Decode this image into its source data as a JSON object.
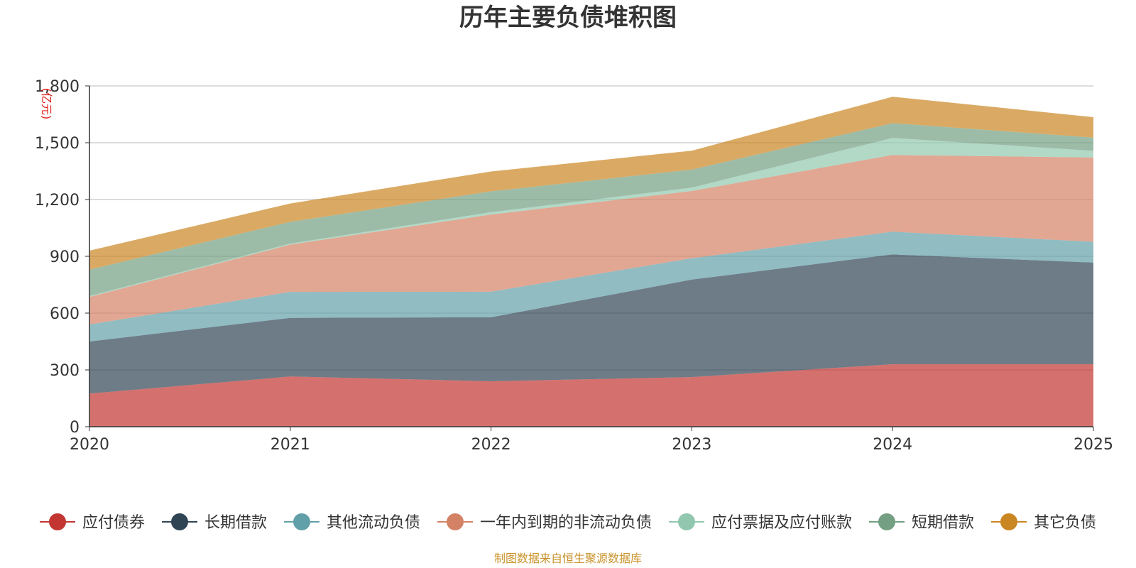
{
  "chart_data": {
    "type": "area",
    "stacked": true,
    "title": "历年主要负债堆积图",
    "unit": "(亿元)",
    "x": [
      "2020",
      "2021",
      "2022",
      "2023",
      "2024",
      "2025"
    ],
    "ylim": [
      0,
      1800
    ],
    "yticks": [
      0,
      300,
      600,
      900,
      1200,
      1500,
      1800
    ],
    "ytick_labels": [
      "0",
      "300",
      "600",
      "900",
      "1,200",
      "1,500",
      "1,800"
    ],
    "grid": true,
    "legend_position": "bottom",
    "series": [
      {
        "name": "应付债券",
        "color": "#c23531",
        "values": [
          175,
          265,
          240,
          262,
          330,
          330
        ]
      },
      {
        "name": "长期借款",
        "color": "#2f4554",
        "values": [
          275,
          310,
          338,
          515,
          580,
          537
        ]
      },
      {
        "name": "其他流动负债",
        "color": "#61a0a8",
        "values": [
          90,
          137,
          135,
          113,
          120,
          110
        ]
      },
      {
        "name": "一年内到期的非流动负债",
        "color": "#d48265",
        "values": [
          145,
          250,
          408,
          355,
          405,
          445
        ]
      },
      {
        "name": "应付票据及应付账款",
        "color": "#91c7ae",
        "values": [
          5,
          5,
          12,
          18,
          90,
          35
        ]
      },
      {
        "name": "短期借款",
        "color": "#749f83",
        "values": [
          140,
          115,
          110,
          95,
          78,
          70
        ]
      },
      {
        "name": "其它负债",
        "color": "#ca8622",
        "values": [
          100,
          97,
          105,
          100,
          140,
          108
        ]
      }
    ],
    "source": "制图数据来自恒生聚源数据库"
  }
}
